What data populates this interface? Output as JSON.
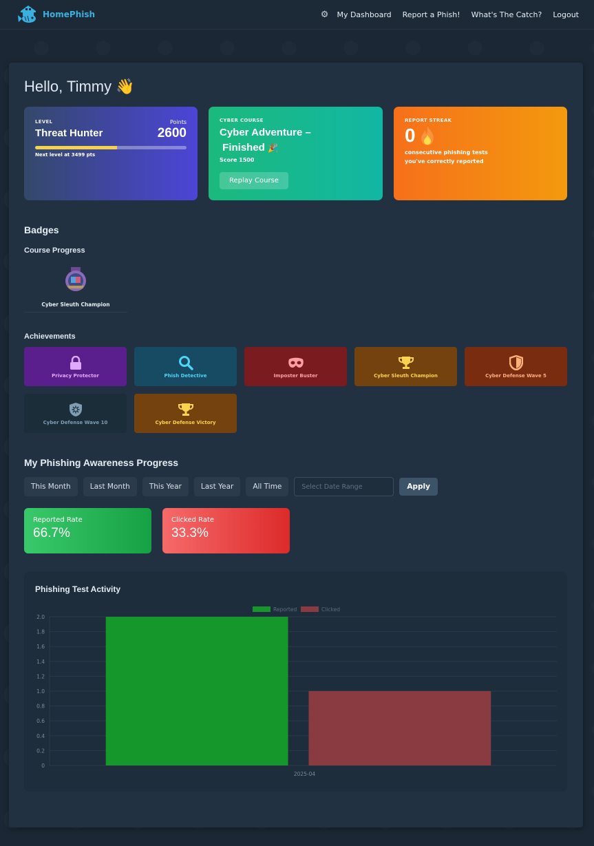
{
  "nav": {
    "brand": "HomePhish",
    "links": [
      "My Dashboard",
      "Report a Phish!",
      "What's The Catch?",
      "Logout"
    ]
  },
  "greeting": "Hello, Timmy",
  "level_card": {
    "label": "LEVEL",
    "title": "Threat Hunter",
    "points_label": "Points",
    "points": "2600",
    "progress": 0.54,
    "next_level": "Next level at 3499 pts"
  },
  "course_card": {
    "label": "CYBER COURSE",
    "title_line1": "Cyber Adventure –",
    "title_line2": "Finished",
    "score": "Score 1500",
    "button": "Replay Course"
  },
  "streak_card": {
    "label": "REPORT STREAK",
    "count": "0",
    "text_line1": "consecutive phishing tests",
    "text_line2": "you've correctly reported"
  },
  "badges": {
    "heading": "Badges",
    "course_progress_heading": "Course Progress",
    "items": [
      {
        "label": "Cyber Sleuth Champion"
      }
    ]
  },
  "achievements": {
    "heading": "Achievements",
    "items": [
      {
        "label": "Privacy Protector",
        "icon": "lock-icon",
        "bg": "#5a1f8c",
        "color": "#e0a8ff"
      },
      {
        "label": "Phish Detective",
        "icon": "magnifier-icon",
        "bg": "#174a63",
        "color": "#4fd4f5"
      },
      {
        "label": "Imposter Buster",
        "icon": "mask-icon",
        "bg": "#7a1b20",
        "color": "#ff9ea3"
      },
      {
        "label": "Cyber Sleuth Champion",
        "icon": "trophy-icon",
        "bg": "#73420f",
        "color": "#fcd34d"
      },
      {
        "label": "Cyber Defense Wave 5",
        "icon": "shield-icon",
        "bg": "#7a2c10",
        "color": "#fdb07a"
      },
      {
        "label": "Cyber Defense Wave 10",
        "icon": "shield-virus-icon",
        "bg": "#1c2d3a",
        "color": "#7f9db3"
      },
      {
        "label": "Cyber Defense Victory",
        "icon": "trophy-icon",
        "bg": "#73420f",
        "color": "#fcd34d"
      }
    ]
  },
  "progress": {
    "heading": "My Phishing Awareness Progress",
    "filters": [
      "This Month",
      "Last Month",
      "This Year",
      "Last Year",
      "All Time"
    ],
    "date_placeholder": "Select Date Range",
    "apply": "Apply",
    "reported_label": "Reported Rate",
    "reported_value": "66.7%",
    "clicked_label": "Clicked Rate",
    "clicked_value": "33.3%"
  },
  "chart_title": "Phishing Test Activity",
  "chart_data": {
    "type": "bar",
    "categories": [
      "2025-04"
    ],
    "series": [
      {
        "name": "Reported",
        "values": [
          2
        ],
        "color": "#15972b"
      },
      {
        "name": "Clicked",
        "values": [
          1
        ],
        "color": "#8a3a41"
      }
    ],
    "ylim": [
      0,
      2.0
    ],
    "yticks": [
      "0",
      "0.2",
      "0.4",
      "0.6",
      "0.8",
      "1.0",
      "1.2",
      "1.4",
      "1.6",
      "1.8",
      "2.0"
    ],
    "grid": true,
    "legend": "top"
  }
}
